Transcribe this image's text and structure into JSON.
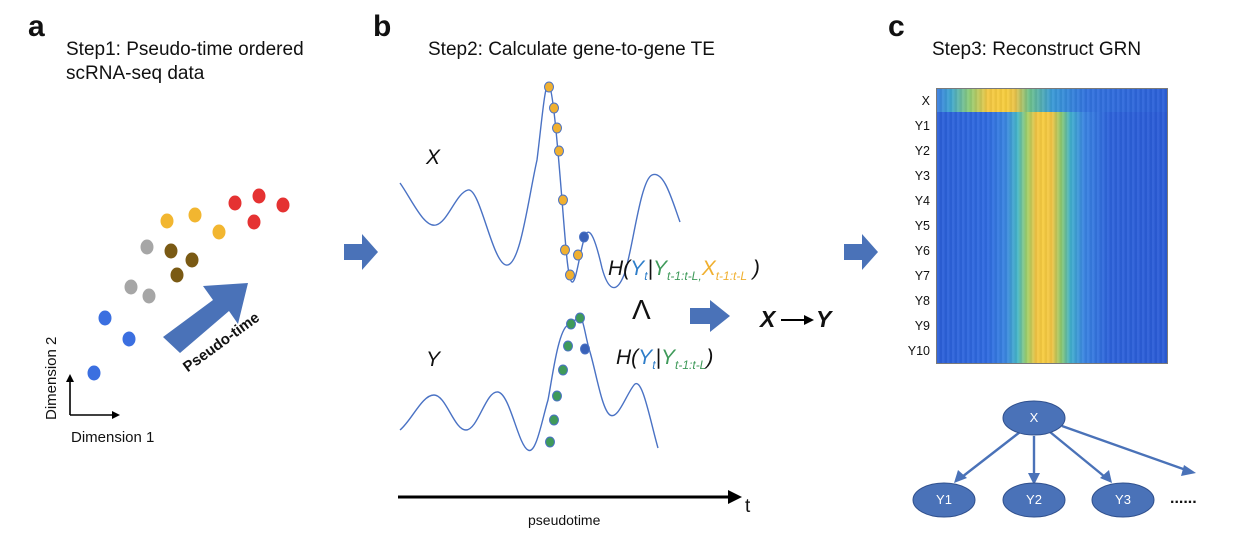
{
  "panel_a": {
    "letter": "a",
    "title_line1": "Step1: Pseudo-time ordered",
    "title_line2": "scRNA-seq data",
    "arrow_label": "Pseudo-time",
    "axis_y_label": "Dimension 2",
    "axis_x_label": "Dimension 1"
  },
  "panel_b": {
    "letter": "b",
    "title": "Step2: Calculate gene-to-gene TE",
    "signal_x_label": "X",
    "signal_y_label": "Y",
    "time_axis_label": "pseudotime",
    "time_symbol": "t",
    "formula_joint": {
      "open": "H(",
      "y": "Y",
      "y_sub": "t",
      "bar": "|",
      "ypast": "Y",
      "ypast_sub": "t-1:t-L,",
      "xpast": "X",
      "xpast_sub": "t-1:t-L",
      "close": " )"
    },
    "formula_cond": {
      "open": "H(",
      "y": "Y",
      "y_sub": "t",
      "bar": "|",
      "ypast": "Y",
      "ypast_sub": "t-1:t-L",
      "close": ")"
    },
    "wedge": "Λ",
    "result_from": "X",
    "result_to": "Y"
  },
  "panel_c": {
    "letter": "c",
    "title": "Step3: Reconstruct GRN",
    "heatmap_rows": [
      "X",
      "Y1",
      "Y2",
      "Y3",
      "Y4",
      "Y5",
      "Y6",
      "Y7",
      "Y8",
      "Y9",
      "Y10"
    ],
    "network_root": "X",
    "network_children": [
      "Y1",
      "Y2",
      "Y3"
    ],
    "network_more": "......"
  },
  "colors": {
    "blue_cell": "#3b6fe0",
    "gray_cell": "#a6a6a6",
    "yellow_cell": "#f2b630",
    "brown_cell": "#7a5a14",
    "red_cell": "#e53232",
    "big_arrow": "#4a72b8",
    "x_color": "#f0b030",
    "y_color": "#3f9a5a",
    "yt_color": "#2f7ec9",
    "node_fill": "#4a72b8",
    "heat_low": "#2b5fd8",
    "heat_mid": "#3fb6c8",
    "heat_high": "#f5c940"
  }
}
